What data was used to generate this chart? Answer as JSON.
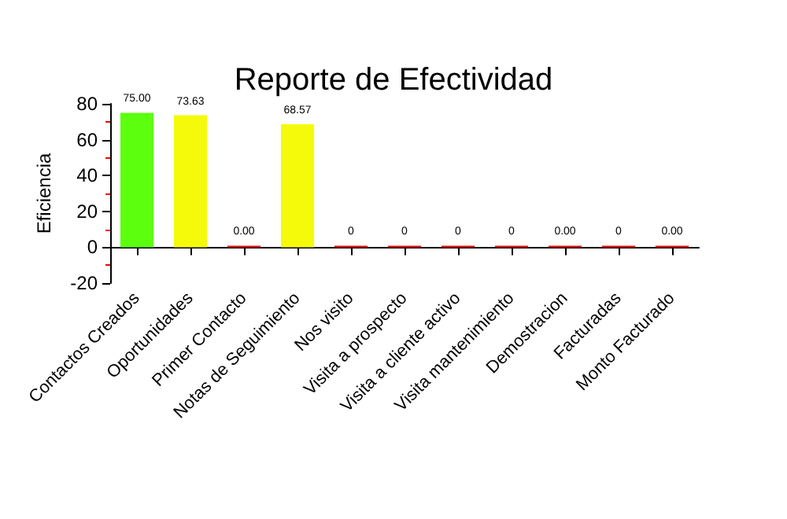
{
  "chart_data": {
    "type": "bar",
    "title": "Reporte de Efectividad",
    "ylabel": "Eficiencia",
    "categories": [
      "Contactos Creados",
      "Oportunidades",
      "Primer Contacto",
      "Notas de Seguimiento",
      "Nos visito",
      "Visita a prospecto",
      "Visita a cliente activo",
      "Visita mantenimiento",
      "Demostracion",
      "Facturadas",
      "Monto Facturado"
    ],
    "values": [
      75,
      73.63,
      0,
      68.57,
      0,
      0,
      0,
      0,
      0,
      0,
      0
    ],
    "colors": [
      "#5cff0e",
      "#f5fa0a",
      "#ff0000",
      "#f5fa0a",
      "#ff0000",
      "#ff0000",
      "#ff0000",
      "#ff0000",
      "#ff0000",
      "#ff0000",
      "#ff0000"
    ],
    "value_labels": [
      "75.00",
      "73.63",
      "0.00",
      "68.57",
      "0",
      "0",
      "0",
      "0",
      "0.00",
      "0",
      "0.00"
    ],
    "ylim": [
      -20,
      80
    ],
    "yticks": [
      -20,
      0,
      20,
      40,
      60,
      80
    ],
    "grid": false
  }
}
